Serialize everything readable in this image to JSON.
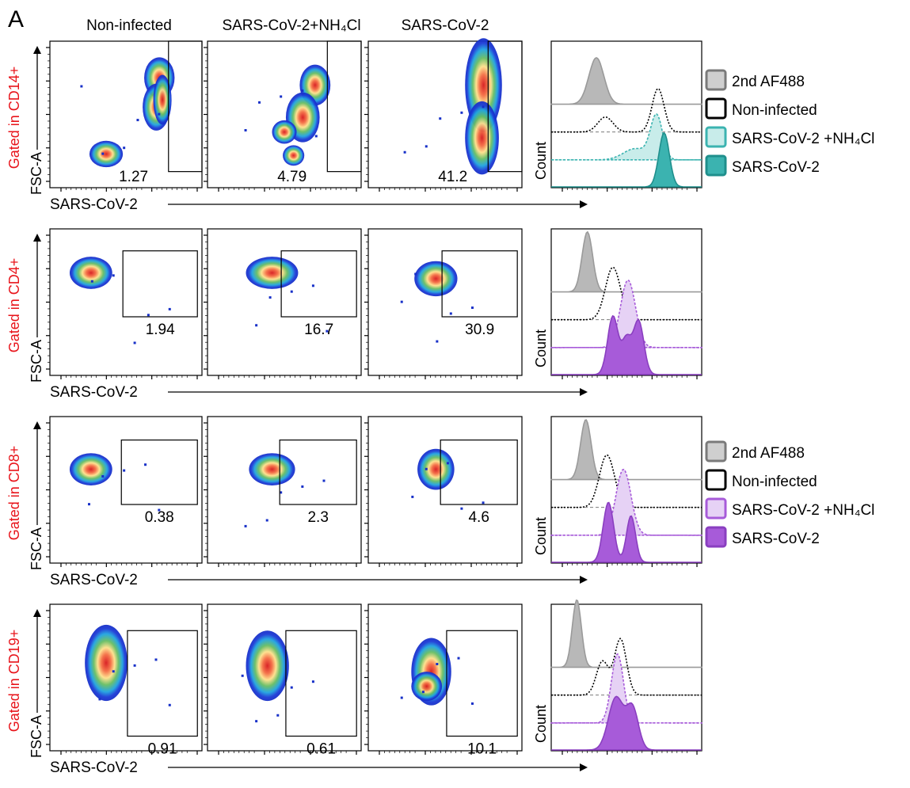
{
  "panel_letter": "A",
  "conditions": [
    "Non-infected",
    "SARS-CoV-2+NH₄Cl",
    "SARS-CoV-2"
  ],
  "axes": {
    "fsc_label": "FSC-A",
    "x_label": "SARS-CoV-2",
    "count_label": "Count"
  },
  "colors": {
    "gate_label": "#e8141b",
    "teal": "#3bb3b0",
    "teal_light": "#c8ecea",
    "purple": "#a75bd9",
    "purple_light": "#e6d2f5",
    "gray": "#b8b8b8"
  },
  "legends": [
    {
      "id": "teal",
      "items": [
        {
          "label": "2nd AF488",
          "style": "gray"
        },
        {
          "label": "Non-infected",
          "style": "dotted"
        },
        {
          "label": "SARS-CoV-2 +NH₄Cl",
          "style": "light"
        },
        {
          "label": "SARS-CoV-2",
          "style": "dark"
        }
      ]
    },
    {
      "id": "purple",
      "items": [
        {
          "label": "2nd AF488",
          "style": "gray"
        },
        {
          "label": "Non-infected",
          "style": "dotted"
        },
        {
          "label": "SARS-CoV-2 +NH₄Cl",
          "style": "light"
        },
        {
          "label": "SARS-CoV-2",
          "style": "dark"
        }
      ]
    }
  ],
  "chart_data": [
    {
      "type": "scatter",
      "kind": "flow-density",
      "row_label": "Gated in CD14+",
      "gated_percent": [
        "1.27",
        "4.79",
        "41.2"
      ],
      "xlabel": "SARS-CoV-2",
      "ylabel": "FSC-A"
    },
    {
      "type": "area",
      "kind": "histogram-overlay",
      "row_label": "Gated in CD14+",
      "series": [
        "2nd AF488",
        "Non-infected",
        "SARS-CoV-2 +NH₄Cl",
        "SARS-CoV-2"
      ],
      "ylabel": "Count"
    },
    {
      "type": "scatter",
      "kind": "flow-density",
      "row_label": "Gated in CD4+",
      "gated_percent": [
        "1.94",
        "16.7",
        "30.9"
      ],
      "xlabel": "SARS-CoV-2",
      "ylabel": "FSC-A"
    },
    {
      "type": "area",
      "kind": "histogram-overlay",
      "row_label": "Gated in CD4+",
      "series": [
        "2nd AF488",
        "Non-infected",
        "SARS-CoV-2 +NH₄Cl",
        "SARS-CoV-2"
      ],
      "ylabel": "Count"
    },
    {
      "type": "scatter",
      "kind": "flow-density",
      "row_label": "Gated in CD8+",
      "gated_percent": [
        "0.38",
        "2.3",
        "4.6"
      ],
      "xlabel": "SARS-CoV-2",
      "ylabel": "FSC-A"
    },
    {
      "type": "area",
      "kind": "histogram-overlay",
      "row_label": "Gated in CD8+",
      "series": [
        "2nd AF488",
        "Non-infected",
        "SARS-CoV-2 +NH₄Cl",
        "SARS-CoV-2"
      ],
      "ylabel": "Count"
    },
    {
      "type": "scatter",
      "kind": "flow-density",
      "row_label": "Gated in CD19+",
      "gated_percent": [
        "0.91",
        "0.61",
        "10.1"
      ],
      "xlabel": "SARS-CoV-2",
      "ylabel": "FSC-A"
    },
    {
      "type": "area",
      "kind": "histogram-overlay",
      "row_label": "Gated in CD19+",
      "series": [
        "2nd AF488",
        "Non-infected",
        "SARS-CoV-2 +NH₄Cl",
        "SARS-CoV-2"
      ],
      "ylabel": "Count"
    }
  ]
}
